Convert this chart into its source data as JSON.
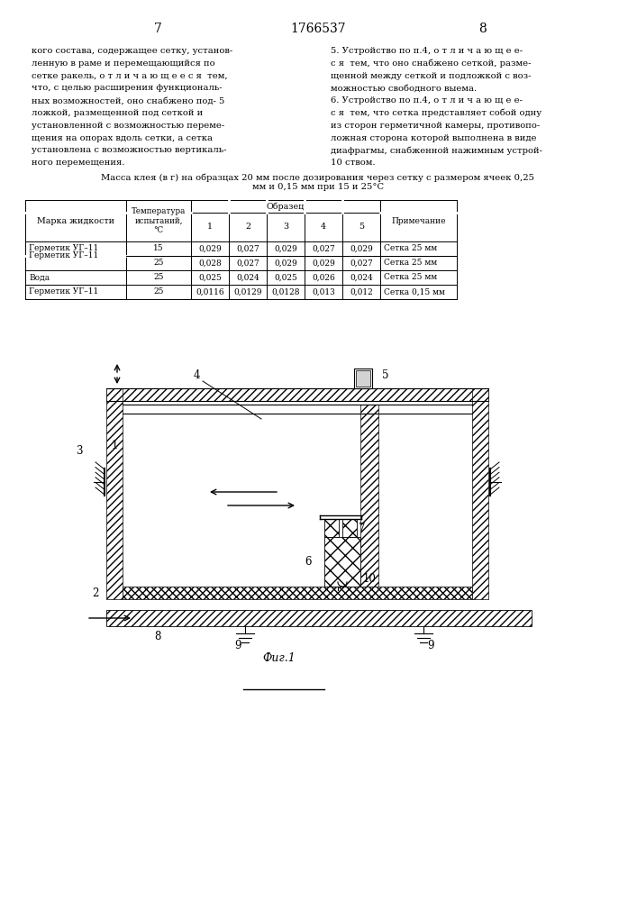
{
  "page_left_num": "7",
  "page_center_num": "1766537",
  "page_right_num": "8",
  "text_left": [
    "кого состава, содержащее сетку, установ-",
    "ленную в раме и перемещающийся по",
    "сетке ракель, о т л и ч а ю щ е е с я  тем,",
    "что, с целью расширения функциональ-",
    "ных возможностей, оно снабжено под- 5",
    "ложкой, размещенной под сеткой и",
    "установленной с возможностью переме-",
    "щения на опорах вдоль сетки, а сетка",
    "установлена с возможностью вертикаль-",
    "ного перемещения."
  ],
  "text_right": [
    "5. Устройство по п.4, о т л и ч а ю щ е е-",
    "с я  тем, что оно снабжено сеткой, разме-",
    "щенной между сеткой и подложкой с воз-",
    "можностью свободного выема.",
    "6. Устройство по п.4, о т л и ч а ю щ е е-",
    "с я  тем, что сетка представляет собой одну",
    "из сторон герметичной камеры, противопо-",
    "ложная сторона которой выполнена в виде",
    "диафрагмы, снабженной нажимным устрой-",
    "10 ством."
  ],
  "table_title": "Масса клея (в г) на образцах 20 мм после дозирования через сетку с размером ячеек 0,25\nмм и 0,15 мм при 15 и 25°С",
  "table_rows": [
    [
      "Герметик УГ–11",
      "15",
      "0,029",
      "0,027",
      "0,029",
      "0,027",
      "0,029",
      "Сетка 25 мм"
    ],
    [
      "",
      "25",
      "0,028",
      "0,027",
      "0,029",
      "0,029",
      "0,027",
      "Сетка 25 мм"
    ],
    [
      "Вода",
      "25",
      "0,025",
      "0,024",
      "0,025",
      "0,026",
      "0,024",
      "Сетка 25 мм"
    ],
    [
      "Герметик УГ–11",
      "25",
      "0,0116",
      "0,0129",
      "0,0128",
      "0,013",
      "0,012",
      "Сетка 0,15 мм"
    ]
  ],
  "fig_caption": "Фиг.1",
  "bg_color": "#ffffff",
  "line_color": "#000000"
}
